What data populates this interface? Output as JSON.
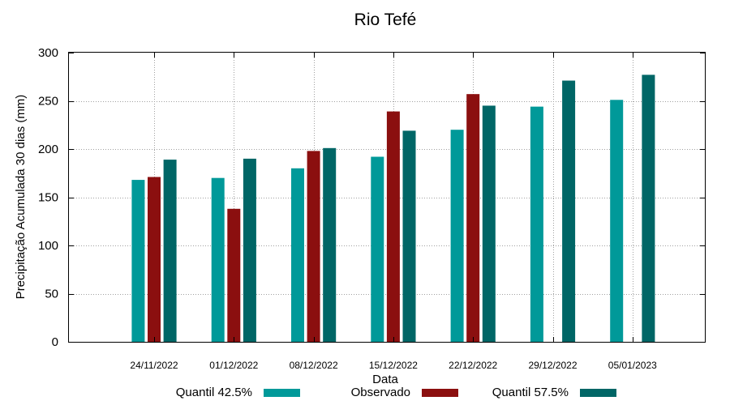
{
  "chart_data": {
    "type": "bar",
    "title": "Rio Tefé",
    "xlabel": "Data",
    "ylabel": "Precipitação Acumulada 30 dias (mm)",
    "ylim": [
      0,
      300
    ],
    "yticks": [
      0,
      50,
      100,
      150,
      200,
      250,
      300
    ],
    "grid": true,
    "legend_position": "bottom",
    "categories": [
      "24/11/2022",
      "01/12/2022",
      "08/12/2022",
      "15/12/2022",
      "22/12/2022",
      "29/12/2022",
      "05/01/2023"
    ],
    "series": [
      {
        "name": "Quantil 42.5%",
        "color": "#009999",
        "values": [
          168,
          170,
          180,
          192,
          220,
          244,
          251
        ]
      },
      {
        "name": "Observado",
        "color": "#8b0f0f",
        "values": [
          171,
          138,
          198,
          239,
          257,
          null,
          null
        ]
      },
      {
        "name": "Quantil 57.5%",
        "color": "#006666",
        "values": [
          189,
          190,
          201,
          219,
          245,
          271,
          277
        ]
      }
    ]
  }
}
